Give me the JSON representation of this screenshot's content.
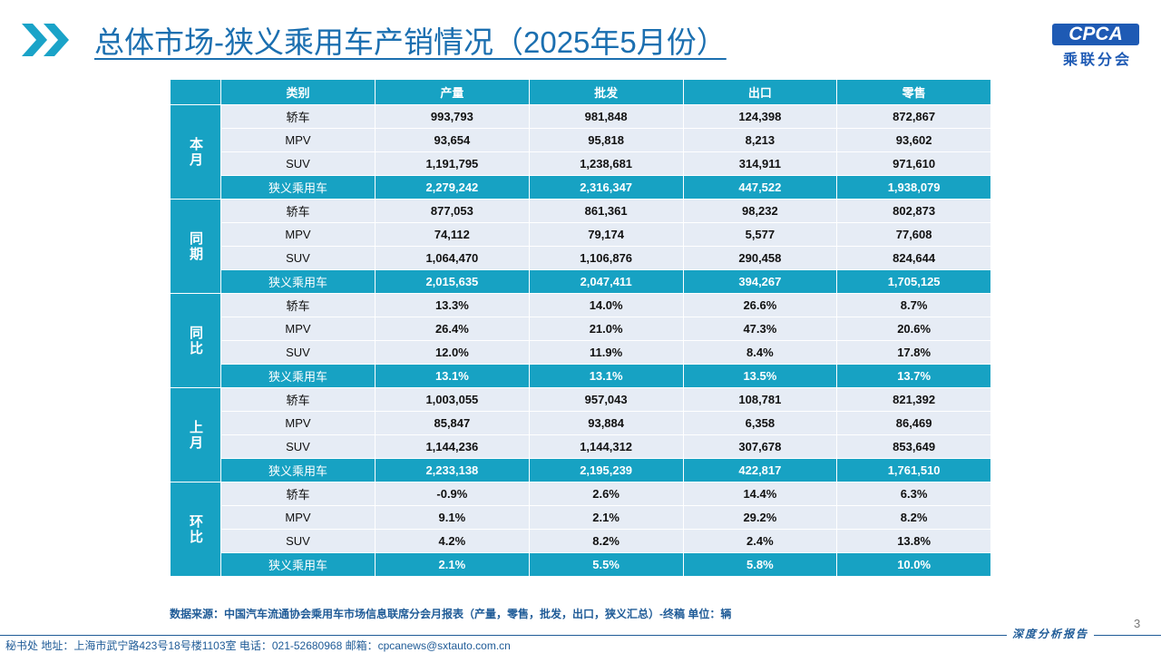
{
  "header": {
    "title": "总体市场-狭义乘用车产销情况（2025年5月份）",
    "logo": "CPCA",
    "logo_sub": "乘联分会"
  },
  "table": {
    "columns": [
      "类别",
      "产量",
      "批发",
      "出口",
      "零售"
    ],
    "groups": [
      {
        "label": "本月",
        "rows": [
          [
            "轿车",
            "993,793",
            "981,848",
            "124,398",
            "872,867"
          ],
          [
            "MPV",
            "93,654",
            "95,818",
            "8,213",
            "93,602"
          ],
          [
            "SUV",
            "1,191,795",
            "1,238,681",
            "314,911",
            "971,610"
          ],
          [
            "狭义乘用车",
            "2,279,242",
            "2,316,347",
            "447,522",
            "1,938,079"
          ]
        ]
      },
      {
        "label": "同期",
        "rows": [
          [
            "轿车",
            "877,053",
            "861,361",
            "98,232",
            "802,873"
          ],
          [
            "MPV",
            "74,112",
            "79,174",
            "5,577",
            "77,608"
          ],
          [
            "SUV",
            "1,064,470",
            "1,106,876",
            "290,458",
            "824,644"
          ],
          [
            "狭义乘用车",
            "2,015,635",
            "2,047,411",
            "394,267",
            "1,705,125"
          ]
        ]
      },
      {
        "label": "同比",
        "rows": [
          [
            "轿车",
            "13.3%",
            "14.0%",
            "26.6%",
            "8.7%"
          ],
          [
            "MPV",
            "26.4%",
            "21.0%",
            "47.3%",
            "20.6%"
          ],
          [
            "SUV",
            "12.0%",
            "11.9%",
            "8.4%",
            "17.8%"
          ],
          [
            "狭义乘用车",
            "13.1%",
            "13.1%",
            "13.5%",
            "13.7%"
          ]
        ]
      },
      {
        "label": "上月",
        "rows": [
          [
            "轿车",
            "1,003,055",
            "957,043",
            "108,781",
            "821,392"
          ],
          [
            "MPV",
            "85,847",
            "93,884",
            "6,358",
            "86,469"
          ],
          [
            "SUV",
            "1,144,236",
            "1,144,312",
            "307,678",
            "853,649"
          ],
          [
            "狭义乘用车",
            "2,233,138",
            "2,195,239",
            "422,817",
            "1,761,510"
          ]
        ]
      },
      {
        "label": "环比",
        "rows": [
          [
            "轿车",
            "-0.9%",
            "2.6%",
            "14.4%",
            "6.3%"
          ],
          [
            "MPV",
            "9.1%",
            "2.1%",
            "29.2%",
            "8.2%"
          ],
          [
            "SUV",
            "4.2%",
            "8.2%",
            "2.4%",
            "13.8%"
          ],
          [
            "狭义乘用车",
            "2.1%",
            "5.5%",
            "5.8%",
            "10.0%"
          ]
        ]
      }
    ]
  },
  "source": "数据来源：中国汽车流通协会乘用车市场信息联席分会月报表（产量，零售，批发，出口，狭义汇总）-终稿    单位：辆",
  "page_number": "3",
  "footer": {
    "address": "秘书处   地址：上海市武宁路423号18号楼1103室  电话：021-52680968   邮箱：cpcanews@sxtauto.com.cn",
    "tag": "深度分析报告"
  }
}
